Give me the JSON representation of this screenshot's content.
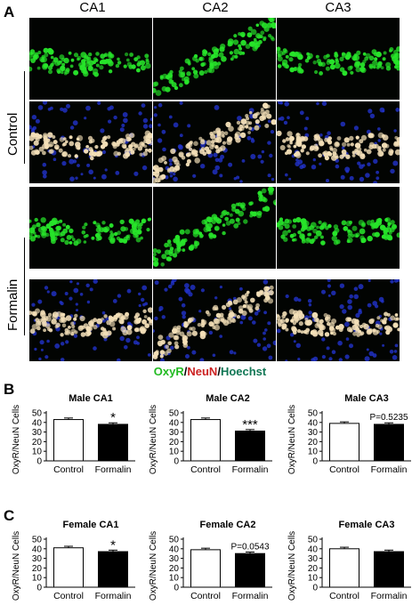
{
  "panel_labels": {
    "a": "A",
    "b": "B",
    "c": "C"
  },
  "columns": [
    "CA1",
    "CA2",
    "CA3"
  ],
  "rows": [
    "Control",
    "Formalin"
  ],
  "stain_legend": {
    "part1": "OxyR",
    "sep1": "/",
    "part2": "NeuN",
    "sep2": "/",
    "part3": "Hoechst",
    "colors": {
      "OxyR": "#22bb22",
      "NeuN": "#cc2222",
      "Hoechst": "#117755",
      "sep": "#000000"
    }
  },
  "micrograph_colors": {
    "green": "#27e52a",
    "blue": "#2233cc",
    "merge": "#f4e0b8",
    "dark": "#020402"
  },
  "chart_data": [
    {
      "type": "bar",
      "title": "Male CA1",
      "categories": [
        "Control",
        "Formalin"
      ],
      "values": [
        43,
        38
      ],
      "ylabel": "OxyR/NeuN Cells",
      "ylim": [
        0,
        50
      ],
      "yticks": [
        0,
        10,
        20,
        30,
        40,
        50
      ],
      "annotation": "*",
      "annotation_target": "Formalin"
    },
    {
      "type": "bar",
      "title": "Male CA2",
      "categories": [
        "Control",
        "Formalin"
      ],
      "values": [
        43,
        31
      ],
      "ylabel": "OxyR/NeuN Cells",
      "ylim": [
        0,
        50
      ],
      "yticks": [
        0,
        10,
        20,
        30,
        40,
        50
      ],
      "annotation": "***",
      "annotation_target": "Formalin"
    },
    {
      "type": "bar",
      "title": "Male CA3",
      "categories": [
        "Control",
        "Formalin"
      ],
      "values": [
        39,
        38
      ],
      "ylabel": "OxyR/NeuN Cells",
      "ylim": [
        0,
        50
      ],
      "yticks": [
        0,
        10,
        20,
        30,
        40,
        50
      ],
      "annotation": "P=0.5235",
      "annotation_target": "Formalin"
    },
    {
      "type": "bar",
      "title": "Female CA1",
      "categories": [
        "Control",
        "Formalin"
      ],
      "values": [
        41,
        37
      ],
      "ylabel": "OxyR/NeuN Cells",
      "ylim": [
        0,
        50
      ],
      "yticks": [
        0,
        10,
        20,
        30,
        40,
        50
      ],
      "annotation": "*",
      "annotation_target": "Formalin"
    },
    {
      "type": "bar",
      "title": "Female CA2",
      "categories": [
        "Control",
        "Formalin"
      ],
      "values": [
        39,
        35
      ],
      "ylabel": "OxyR/NeuN Cells",
      "ylim": [
        0,
        50
      ],
      "yticks": [
        0,
        10,
        20,
        30,
        40,
        50
      ],
      "annotation": "P=0.0543",
      "annotation_target": "Formalin"
    },
    {
      "type": "bar",
      "title": "Female CA3",
      "categories": [
        "Control",
        "Formalin"
      ],
      "values": [
        40,
        37
      ],
      "ylabel": "OxyR/NeuN Cells",
      "ylim": [
        0,
        50
      ],
      "yticks": [
        0,
        10,
        20,
        30,
        40,
        50
      ],
      "annotation": "",
      "annotation_target": "Formalin"
    }
  ]
}
